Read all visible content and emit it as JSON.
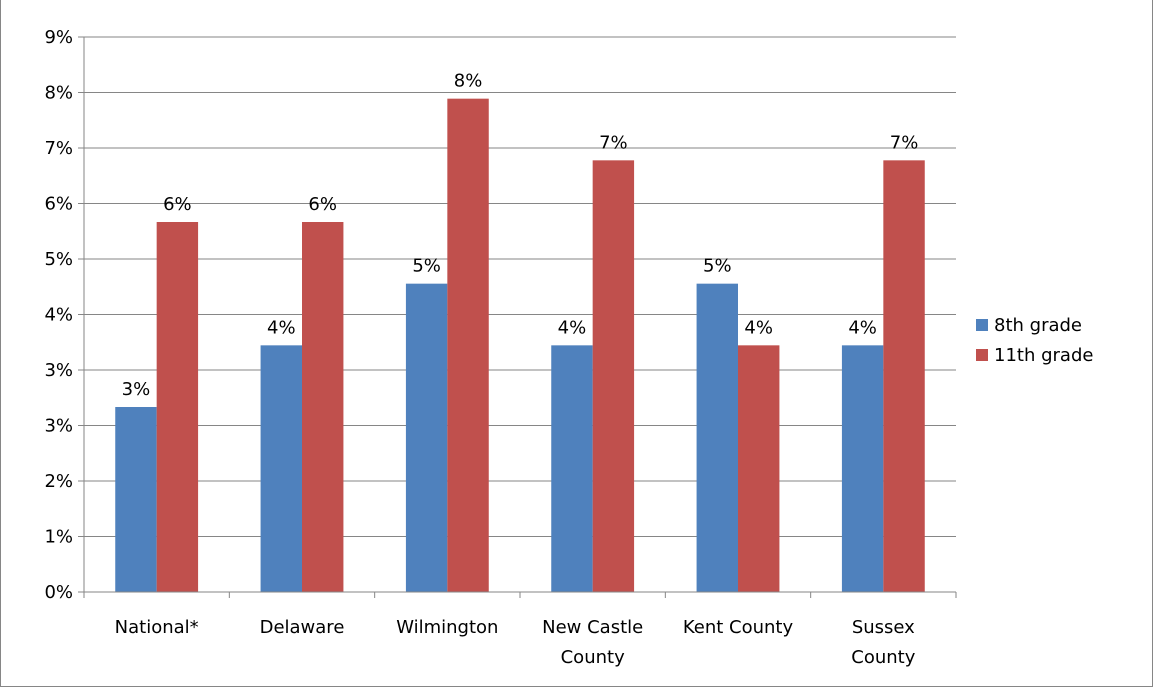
{
  "chart_data": {
    "type": "bar",
    "title": "",
    "xlabel": "",
    "ylabel": "",
    "ylim": [
      0,
      9
    ],
    "yticks": [
      "0%",
      "1%",
      "2%",
      "3%",
      "3%",
      "4%",
      "5%",
      "6%",
      "7%",
      "8%",
      "9%"
    ],
    "categories": [
      [
        "National*"
      ],
      [
        "Delaware"
      ],
      [
        "Wilmington"
      ],
      [
        "New Castle",
        "County"
      ],
      [
        "Kent County"
      ],
      [
        "Sussex",
        "County"
      ]
    ],
    "series": [
      {
        "name": "8th grade",
        "color": "#4F81BD",
        "values": [
          3,
          4,
          5,
          4,
          5,
          4
        ],
        "labels": [
          "3%",
          "4%",
          "5%",
          "4%",
          "5%",
          "4%"
        ]
      },
      {
        "name": "11th grade",
        "color": "#C0504D",
        "values": [
          6,
          6,
          8,
          7,
          4,
          7
        ],
        "labels": [
          "6%",
          "6%",
          "8%",
          "7%",
          "4%",
          "7%"
        ]
      }
    ],
    "grid": true,
    "legend": "right"
  }
}
